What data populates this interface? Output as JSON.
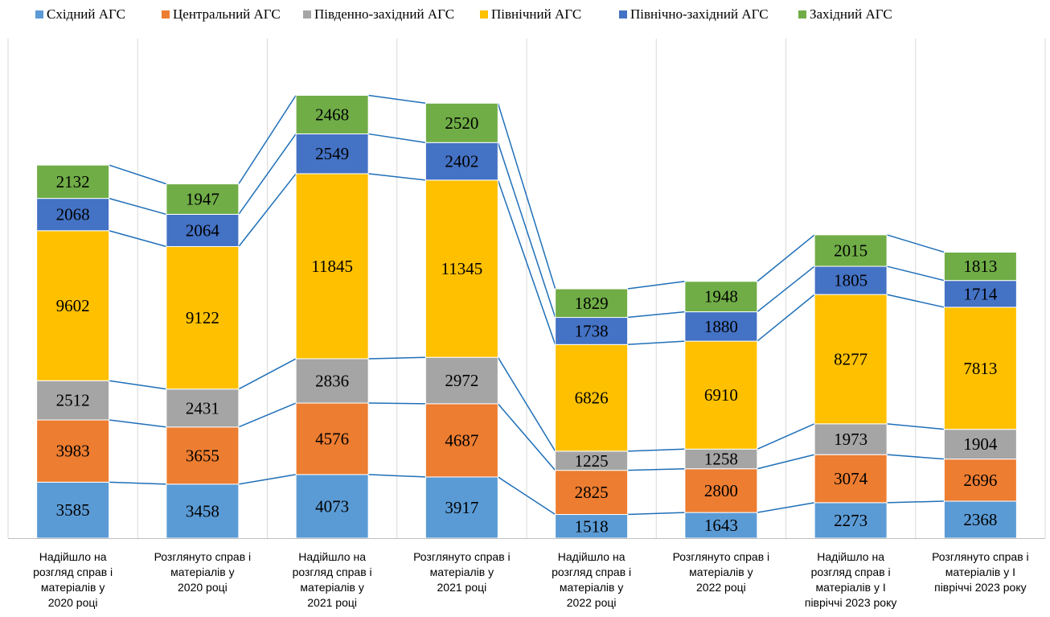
{
  "chart_data": {
    "type": "bar",
    "stacked": true,
    "categories": [
      [
        "Надійшло на",
        "розгляд справ і",
        "матеріалів у",
        "2020 році"
      ],
      [
        "Розглянуто справ і",
        "матеріалів у",
        "2020 році"
      ],
      [
        "Надійшло на",
        "розгляд справ і",
        "матеріалів у",
        "2021 році"
      ],
      [
        "Розглянуто справ і",
        "матеріалів у",
        "2021 році"
      ],
      [
        "Надійшло на",
        "розгляд справ і",
        "матеріалів у",
        "2022 році"
      ],
      [
        "Розглянуто справ і",
        "матеріалів у",
        "2022 році"
      ],
      [
        "Надійшло на",
        "розгляд справ і",
        "матеріалів у І",
        "півріччі 2023 року"
      ],
      [
        "Розглянуто справ і",
        "матеріалів у І",
        "півріччі 2023 року"
      ]
    ],
    "series": [
      {
        "name": "Східний АГС",
        "color": "#5B9BD5",
        "values": [
          3585,
          3458,
          4073,
          3917,
          1518,
          1643,
          2273,
          2368
        ]
      },
      {
        "name": "Центральний АГС",
        "color": "#ED7D31",
        "values": [
          3983,
          3655,
          4576,
          4687,
          2825,
          2800,
          3074,
          2696
        ]
      },
      {
        "name": "Південно-західний АГС",
        "color": "#A5A5A5",
        "values": [
          2512,
          2431,
          2836,
          2972,
          1225,
          1258,
          1973,
          1904
        ]
      },
      {
        "name": "Північний АГС",
        "color": "#FFC000",
        "values": [
          9602,
          9122,
          11845,
          11345,
          6826,
          6910,
          8277,
          7813
        ]
      },
      {
        "name": "Північно-західний АГС",
        "color": "#4472C4",
        "values": [
          2068,
          2064,
          2549,
          2402,
          1738,
          1880,
          1805,
          1714
        ]
      },
      {
        "name": "Західний АГС",
        "color": "#70AD47",
        "values": [
          2132,
          1947,
          2468,
          2520,
          1829,
          1948,
          2015,
          1813
        ]
      }
    ],
    "series_lines": true,
    "series_line_color": "#1F6FB8",
    "legend": "top",
    "gridlines": "vertical",
    "ylim": [
      0,
      29000
    ]
  }
}
